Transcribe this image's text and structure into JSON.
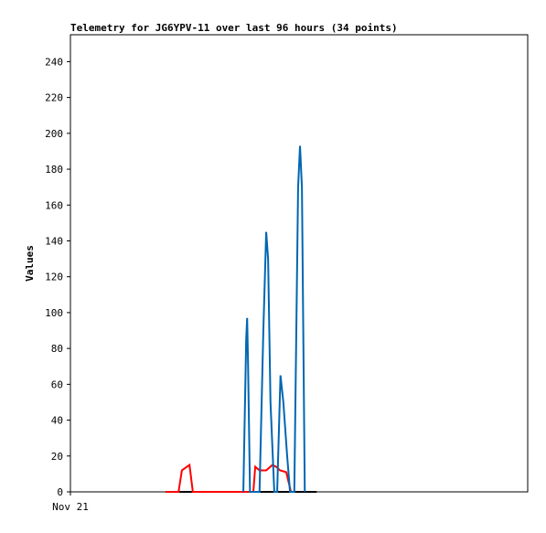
{
  "chart_data": {
    "type": "line",
    "title": "Telemetry for JG6YPV-11 over last 96 hours (34 points)",
    "y_label": "Values",
    "xlim": [
      0,
      96
    ],
    "xticks": [
      {
        "value": 0,
        "label": "Nov 21"
      }
    ],
    "ylim": [
      0,
      255
    ],
    "yticks": [
      0,
      20,
      40,
      60,
      80,
      100,
      120,
      140,
      160,
      180,
      200,
      220,
      240
    ],
    "series": [
      {
        "color": "#000000",
        "x": [
          20.0,
          51.7
        ],
        "values": [
          0,
          0
        ]
      },
      {
        "color": "#ff0000",
        "x": [
          20.0,
          22.7,
          23.4,
          25.0,
          25.7,
          38.4,
          38.8,
          39.7,
          41.1,
          42.4,
          43.2,
          44.0,
          45.3,
          46.3
        ],
        "values": [
          0,
          0,
          12,
          15,
          0,
          0,
          14,
          12,
          12,
          15,
          14,
          12,
          11,
          0
        ]
      },
      {
        "color": "#0066b3",
        "x": [
          36.3,
          36.9,
          37.1,
          37.3,
          37.7,
          39.7,
          40.5,
          41.1,
          41.5,
          42.0,
          42.8,
          43.4,
          44.1,
          44.7,
          45.5,
          46.1,
          47.0,
          47.8,
          48.2,
          48.6,
          49.2
        ],
        "values": [
          0,
          85,
          97,
          70,
          0,
          0,
          90,
          145,
          130,
          50,
          0,
          0,
          65,
          50,
          20,
          0,
          0,
          170,
          193,
          170,
          0
        ]
      }
    ]
  }
}
